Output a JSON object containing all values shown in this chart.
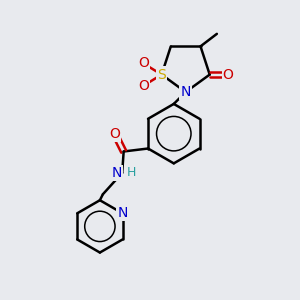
{
  "background_color": "#e8eaee",
  "bond_color": "#000000",
  "atom_colors": {
    "S": "#ccaa00",
    "N": "#0000cc",
    "O": "#cc0000",
    "H": "#2aa0a0",
    "C": "#000000"
  },
  "figsize": [
    3.0,
    3.0
  ],
  "dpi": 100
}
